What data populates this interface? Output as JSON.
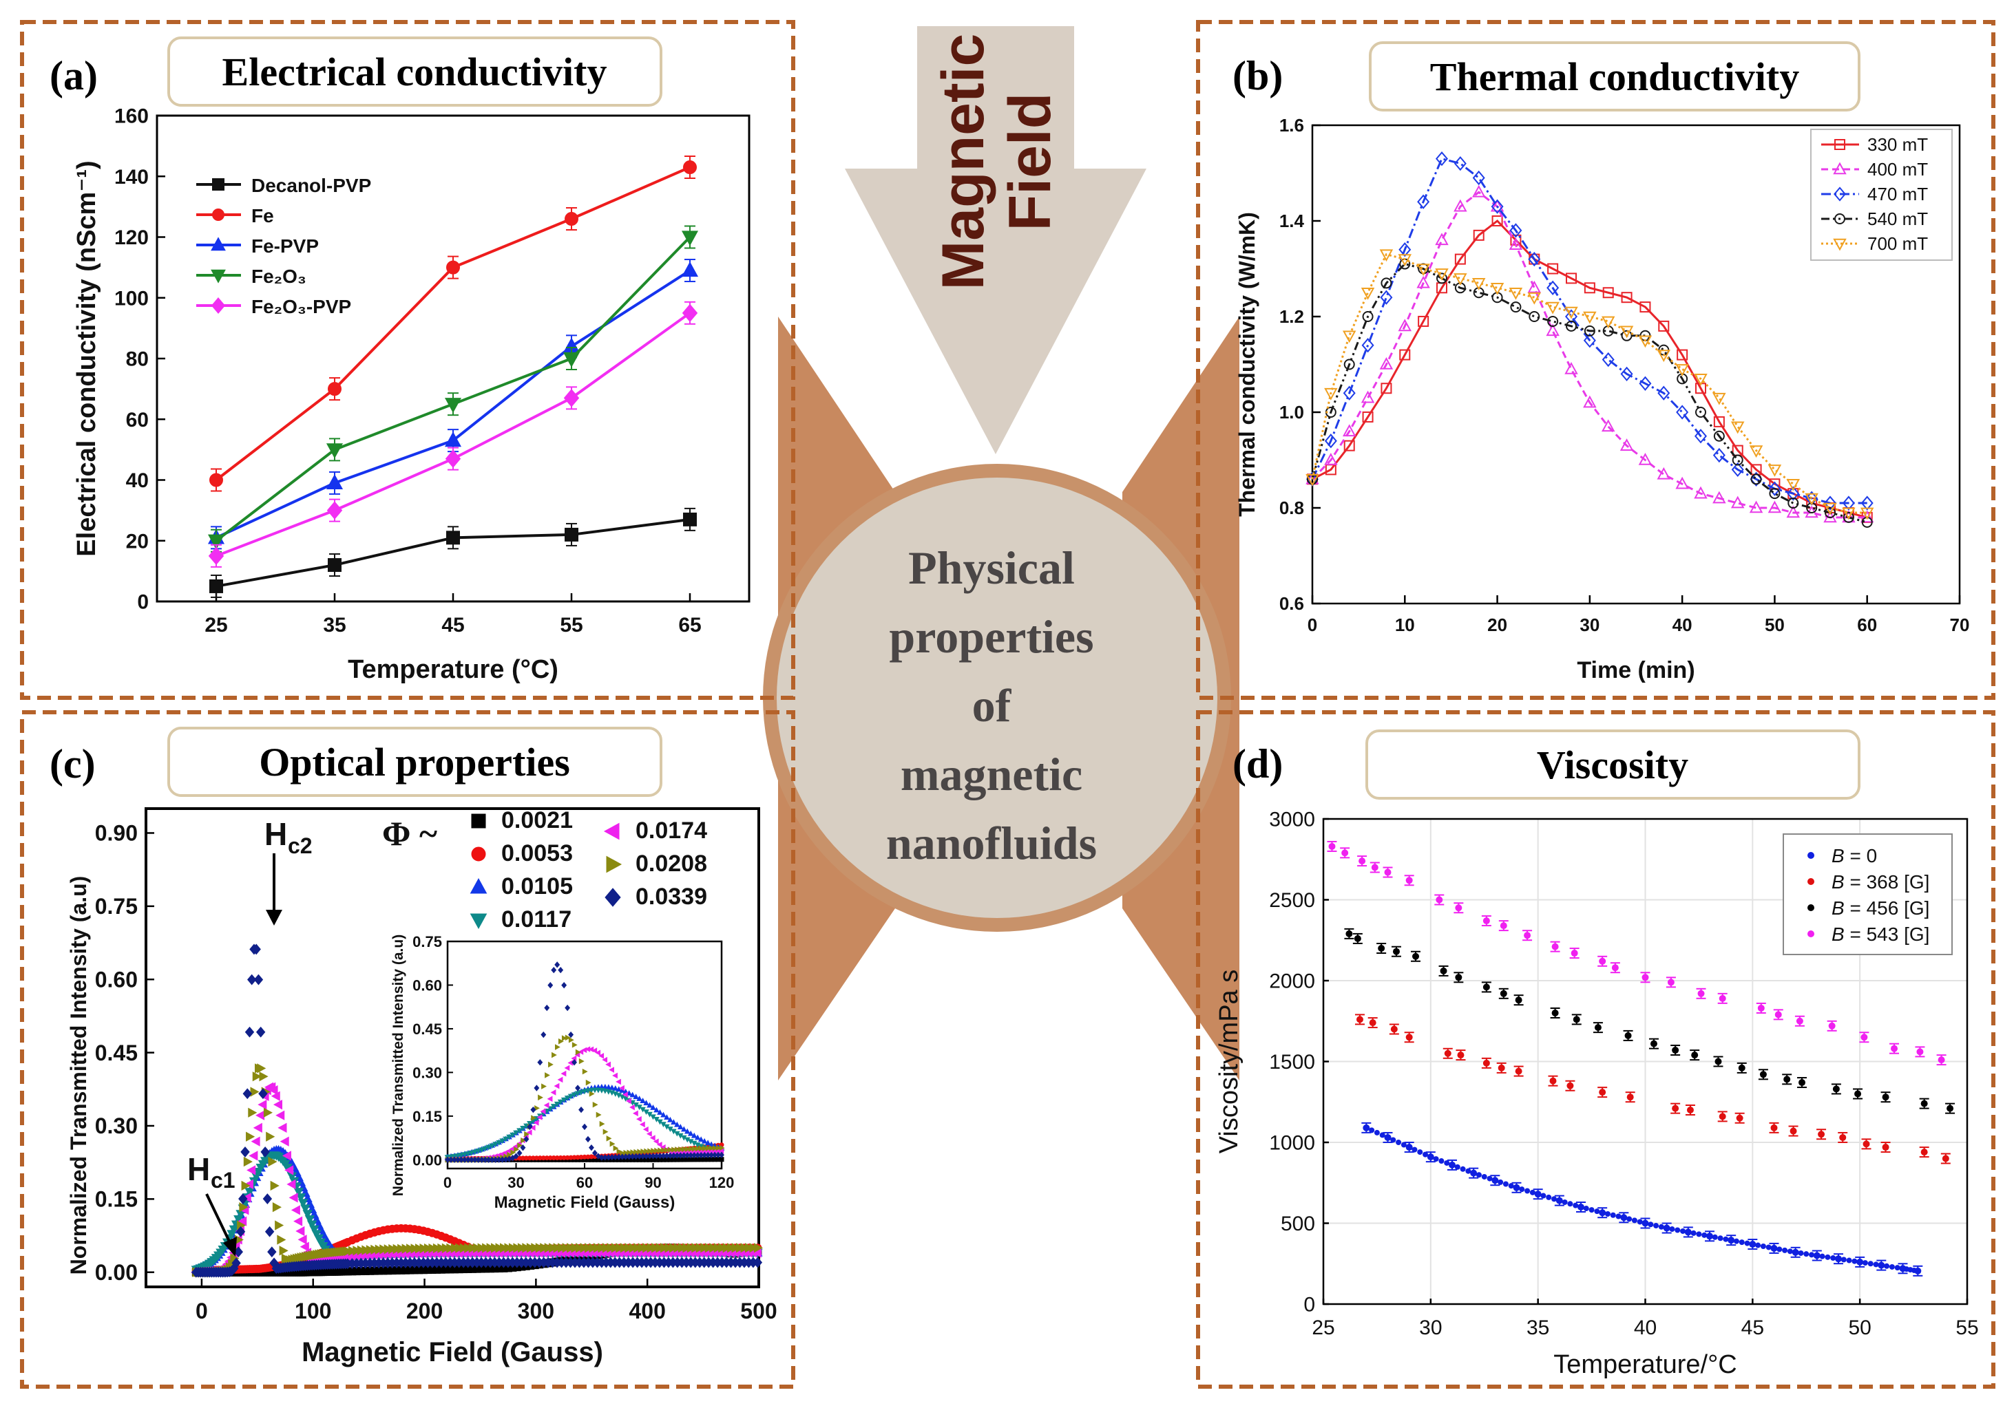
{
  "center": {
    "arrow_text": [
      "Magnetic",
      "Field"
    ],
    "circle_text": [
      "Physical",
      "properties",
      "of",
      "magnetic",
      "nanofluids"
    ]
  },
  "colors": {
    "panel_border": "#b5622a",
    "tab_fill": "#ffffff",
    "tab_border": "#d9c9a8",
    "circle_fill": "#d8cfc3",
    "circle_ring": "#c8926a",
    "arrow_fill": "#d9cfc4",
    "center_text": "#4a4646",
    "arrow_text": "#5a1a0e"
  },
  "chart_data": [
    {
      "panel": "(a)",
      "heading": "Electrical conductivity",
      "type": "line",
      "xlabel": "Temperature (°C)",
      "ylabel": "Electrical  conductivity  (nScm⁻¹)",
      "xlim": [
        20,
        70
      ],
      "ylim": [
        0,
        160
      ],
      "xticks": [
        25,
        35,
        45,
        55,
        65
      ],
      "yticks": [
        0,
        20,
        40,
        60,
        80,
        100,
        120,
        140,
        160
      ],
      "x": [
        25,
        35,
        45,
        55,
        65
      ],
      "legend_position": "top-left",
      "series": [
        {
          "name": "Decanol-PVP",
          "color": "#111111",
          "marker": "square",
          "values": [
            5,
            12,
            21,
            22,
            27
          ]
        },
        {
          "name": "Fe",
          "color": "#ee1c1c",
          "marker": "circle",
          "values": [
            40,
            70,
            110,
            126,
            143
          ]
        },
        {
          "name": "Fe-PVP",
          "color": "#1533ee",
          "marker": "triangle-up",
          "values": [
            21,
            39,
            53,
            84,
            109
          ]
        },
        {
          "name": "Fe₂O₃",
          "color": "#1f8a2a",
          "marker": "triangle-down",
          "values": [
            20,
            50,
            65,
            80,
            120
          ]
        },
        {
          "name": "Fe₂O₃-PVP",
          "color": "#f22ef2",
          "marker": "diamond",
          "values": [
            15,
            30,
            47,
            67,
            95
          ]
        }
      ]
    },
    {
      "panel": "(b)",
      "heading": "Thermal conductivity",
      "type": "line",
      "xlabel": "Time (min)",
      "ylabel": "Thermal conductivity (W/mK)",
      "xlim": [
        0,
        70
      ],
      "ylim": [
        0.6,
        1.6
      ],
      "xticks": [
        0,
        10,
        20,
        30,
        40,
        50,
        60,
        70
      ],
      "yticks": [
        "0.6",
        "0.8",
        "1.0",
        "1.2",
        "1.4",
        "1.6"
      ],
      "legend_position": "top-right",
      "series": [
        {
          "name": "330 mT",
          "color": "#e8242a",
          "marker": "square",
          "dash": "",
          "x": [
            0,
            2,
            4,
            6,
            8,
            10,
            12,
            14,
            16,
            18,
            20,
            22,
            24,
            26,
            28,
            30,
            32,
            34,
            36,
            38,
            40,
            42,
            44,
            46,
            48,
            50,
            52,
            54,
            56,
            58,
            60
          ],
          "values": [
            0.86,
            0.88,
            0.93,
            0.99,
            1.05,
            1.12,
            1.19,
            1.26,
            1.32,
            1.37,
            1.4,
            1.36,
            1.32,
            1.3,
            1.28,
            1.26,
            1.25,
            1.24,
            1.22,
            1.18,
            1.12,
            1.05,
            0.98,
            0.92,
            0.88,
            0.85,
            0.83,
            0.81,
            0.8,
            0.79,
            0.78
          ]
        },
        {
          "name": "400 mT",
          "color": "#e83ae8",
          "marker": "triangle-up",
          "dash": "10,6",
          "x": [
            0,
            2,
            4,
            6,
            8,
            10,
            12,
            14,
            16,
            18,
            20,
            22,
            24,
            26,
            28,
            30,
            32,
            34,
            36,
            38,
            40,
            42,
            44,
            46,
            48,
            50,
            52,
            54,
            56,
            58,
            60
          ],
          "values": [
            0.86,
            0.9,
            0.96,
            1.03,
            1.1,
            1.18,
            1.27,
            1.36,
            1.43,
            1.46,
            1.43,
            1.35,
            1.26,
            1.17,
            1.09,
            1.02,
            0.97,
            0.93,
            0.9,
            0.87,
            0.85,
            0.83,
            0.82,
            0.81,
            0.8,
            0.8,
            0.79,
            0.79,
            0.78,
            0.78,
            0.78
          ]
        },
        {
          "name": "470 mT",
          "color": "#1f3de8",
          "marker": "diamond",
          "dash": "14,5,3,5",
          "x": [
            0,
            2,
            4,
            6,
            8,
            10,
            12,
            14,
            16,
            18,
            20,
            22,
            24,
            26,
            28,
            30,
            32,
            34,
            36,
            38,
            40,
            42,
            44,
            46,
            48,
            50,
            52,
            54,
            56,
            58,
            60
          ],
          "values": [
            0.86,
            0.94,
            1.04,
            1.14,
            1.24,
            1.34,
            1.44,
            1.53,
            1.52,
            1.49,
            1.43,
            1.38,
            1.32,
            1.26,
            1.2,
            1.15,
            1.11,
            1.08,
            1.06,
            1.04,
            1.0,
            0.95,
            0.91,
            0.88,
            0.86,
            0.84,
            0.83,
            0.82,
            0.81,
            0.81,
            0.81
          ]
        },
        {
          "name": "540 mT",
          "color": "#1a1a1a",
          "marker": "circle",
          "dash": "12,5,3,5,3,5",
          "x": [
            0,
            2,
            4,
            6,
            8,
            10,
            12,
            14,
            16,
            18,
            20,
            22,
            24,
            26,
            28,
            30,
            32,
            34,
            36,
            38,
            40,
            42,
            44,
            46,
            48,
            50,
            52,
            54,
            56,
            58,
            60
          ],
          "values": [
            0.86,
            1.0,
            1.1,
            1.2,
            1.27,
            1.31,
            1.3,
            1.28,
            1.26,
            1.25,
            1.24,
            1.22,
            1.2,
            1.19,
            1.18,
            1.17,
            1.17,
            1.16,
            1.16,
            1.13,
            1.07,
            1.0,
            0.95,
            0.9,
            0.86,
            0.83,
            0.81,
            0.8,
            0.79,
            0.78,
            0.77
          ]
        },
        {
          "name": "700 mT",
          "color": "#f0a020",
          "marker": "triangle-down",
          "dash": "3,4",
          "x": [
            0,
            2,
            4,
            6,
            8,
            10,
            12,
            14,
            16,
            18,
            20,
            22,
            24,
            26,
            28,
            30,
            32,
            34,
            36,
            38,
            40,
            42,
            44,
            46,
            48,
            50,
            52,
            54,
            56,
            58,
            60
          ],
          "values": [
            0.86,
            1.04,
            1.16,
            1.25,
            1.33,
            1.32,
            1.3,
            1.29,
            1.28,
            1.27,
            1.26,
            1.25,
            1.24,
            1.22,
            1.21,
            1.2,
            1.19,
            1.17,
            1.15,
            1.12,
            1.09,
            1.07,
            1.03,
            0.97,
            0.92,
            0.88,
            0.85,
            0.82,
            0.8,
            0.79,
            0.79
          ]
        }
      ]
    },
    {
      "panel": "(c)",
      "heading": "Optical properties",
      "type": "scatter",
      "xlabel": "Magnetic Field (Gauss)",
      "ylabel": "Normalized Transmitted Intensity (a.u)",
      "xlim": [
        -50,
        500
      ],
      "ylim": [
        -0.03,
        0.95
      ],
      "xticks": [
        0,
        100,
        200,
        300,
        400,
        500
      ],
      "yticks": [
        "0.00",
        "0.15",
        "0.30",
        "0.45",
        "0.60",
        "0.75",
        "0.90"
      ],
      "legend_title": "Φ ~",
      "legend_position": "top-right",
      "annotations": {
        "hc2": "H",
        "hc2_sub": "c2",
        "hc1": "H",
        "hc1_sub": "c1"
      },
      "series": [
        {
          "name": "0.0021",
          "color": "#000000",
          "marker": "square",
          "peak_x": 420,
          "peak_y": 0.05,
          "width": 110,
          "plateau": 0.05
        },
        {
          "name": "0.0053",
          "color": "#ee1111",
          "marker": "circle",
          "peak_x": 180,
          "peak_y": 0.09,
          "width": 80,
          "plateau": 0.05
        },
        {
          "name": "0.0105",
          "color": "#1238e8",
          "marker": "triangle-up",
          "peak_x": 68,
          "peak_y": 0.25,
          "width": 38,
          "plateau": 0.04
        },
        {
          "name": "0.0117",
          "color": "#0e8a8a",
          "marker": "triangle-down",
          "peak_x": 65,
          "peak_y": 0.24,
          "width": 36,
          "plateau": 0.04
        },
        {
          "name": "0.0174",
          "color": "#ee22ee",
          "marker": "triangle-left",
          "peak_x": 62,
          "peak_y": 0.38,
          "width": 22,
          "plateau": 0.04
        },
        {
          "name": "0.0208",
          "color": "#8a8a10",
          "marker": "triangle-right",
          "peak_x": 52,
          "peak_y": 0.42,
          "width": 14,
          "plateau": 0.05
        },
        {
          "name": "0.0339",
          "color": "#10208a",
          "marker": "diamond",
          "peak_x": 48,
          "peak_y": 0.67,
          "width": 9,
          "plateau": 0.02
        }
      ],
      "inset": {
        "xlabel": "Magnetic Field (Gauss)",
        "ylabel": "Normalized Transmitted Intensity (a.u)",
        "xlim": [
          0,
          120
        ],
        "ylim": [
          -0.03,
          0.75
        ],
        "xticks": [
          0,
          30,
          60,
          90,
          120
        ],
        "yticks": [
          "0.00",
          "0.15",
          "0.30",
          "0.45",
          "0.60",
          "0.75"
        ]
      }
    },
    {
      "panel": "(d)",
      "heading": "Viscosity",
      "type": "scatter",
      "xlabel": "Temperature/°C",
      "ylabel": "Viscosity/mPa s",
      "xlim": [
        25,
        55
      ],
      "ylim": [
        0,
        3000
      ],
      "xticks": [
        25,
        30,
        35,
        40,
        45,
        50,
        55
      ],
      "yticks": [
        0,
        500,
        1000,
        1500,
        2000,
        2500,
        3000
      ],
      "grid": true,
      "legend_position": "top-right",
      "series": [
        {
          "name": "B = 0",
          "legend_var": "B",
          "legend_rest": " = 0",
          "color": "#1020e0",
          "x": [
            27,
            28,
            29,
            30,
            31,
            32,
            33,
            34,
            35,
            36,
            37,
            38,
            39,
            40,
            41,
            42,
            43,
            44,
            45,
            46,
            47,
            48,
            49,
            50,
            51,
            52,
            52.7
          ],
          "values": [
            1090,
            1030,
            970,
            910,
            860,
            810,
            765,
            720,
            680,
            640,
            600,
            565,
            535,
            500,
            470,
            445,
            420,
            395,
            370,
            345,
            320,
            300,
            280,
            260,
            240,
            220,
            205
          ]
        },
        {
          "name": "B = 368 [G]",
          "legend_var": "B",
          "legend_rest": " = 368 [G]",
          "color": "#e01010",
          "x": [
            26.7,
            27.3,
            28.3,
            29,
            30.8,
            31.4,
            32.6,
            33.3,
            34.1,
            35.7,
            36.5,
            38,
            39.3,
            41.4,
            42.1,
            43.6,
            44.4,
            46,
            46.9,
            48.2,
            49.2,
            50.3,
            51.2,
            53,
            54
          ],
          "values": [
            1760,
            1740,
            1700,
            1650,
            1550,
            1540,
            1490,
            1460,
            1440,
            1380,
            1350,
            1310,
            1280,
            1210,
            1200,
            1160,
            1150,
            1090,
            1070,
            1050,
            1030,
            990,
            970,
            940,
            900
          ]
        },
        {
          "name": "B = 456 [G]",
          "legend_var": "B",
          "legend_rest": " = 456 [G]",
          "color": "#000000",
          "x": [
            26.2,
            26.6,
            27.7,
            28.4,
            29.3,
            30.6,
            31.3,
            32.6,
            33.4,
            34.1,
            35.8,
            36.8,
            37.8,
            39.2,
            40.4,
            41.4,
            42.3,
            43.4,
            44.5,
            45.5,
            46.6,
            47.3,
            48.9,
            49.9,
            51.2,
            53,
            54.2
          ],
          "values": [
            2290,
            2260,
            2200,
            2180,
            2150,
            2060,
            2020,
            1960,
            1920,
            1880,
            1800,
            1760,
            1710,
            1660,
            1610,
            1570,
            1540,
            1500,
            1460,
            1420,
            1390,
            1370,
            1330,
            1300,
            1280,
            1240,
            1210
          ]
        },
        {
          "name": "B = 543 [G]",
          "legend_var": "B",
          "legend_rest": " = 543 [G]",
          "color": "#f020f0",
          "x": [
            25.4,
            26,
            26.8,
            27.4,
            28,
            29,
            30.4,
            31.3,
            32.6,
            33.4,
            34.5,
            35.8,
            36.7,
            38,
            38.6,
            40,
            41.2,
            42.6,
            43.6,
            45.4,
            46.2,
            47.2,
            48.7,
            50.2,
            51.6,
            52.8,
            53.8
          ],
          "values": [
            2830,
            2790,
            2740,
            2700,
            2670,
            2620,
            2500,
            2450,
            2370,
            2340,
            2280,
            2210,
            2170,
            2120,
            2080,
            2020,
            1990,
            1920,
            1890,
            1830,
            1790,
            1750,
            1720,
            1650,
            1580,
            1560,
            1510
          ]
        }
      ]
    }
  ]
}
